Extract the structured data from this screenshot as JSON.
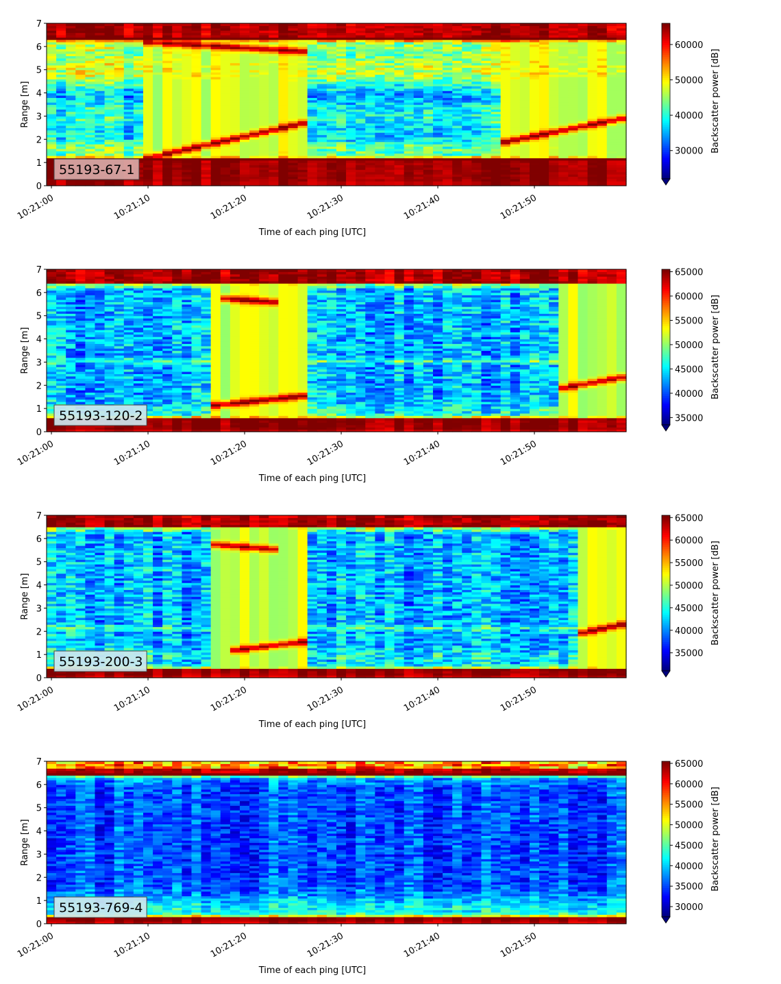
{
  "chart_data": [
    {
      "type": "heatmap",
      "panel_label": "55193-67-1",
      "xlabel": "Time of each ping [UTC]",
      "ylabel": "Range [m]",
      "xticks": [
        "10:21:00",
        "10:21:10",
        "10:21:20",
        "10:21:30",
        "10:21:40",
        "10:21:50"
      ],
      "xlim_seconds": [
        -0.5,
        59.5
      ],
      "ylim": [
        0,
        7
      ],
      "yticks": [
        "0",
        "1",
        "2",
        "3",
        "4",
        "5",
        "6",
        "7"
      ],
      "colorbar_label": "Backscatter power [dB]",
      "colorbar_ticks": [
        30000,
        40000,
        50000,
        60000
      ],
      "colorbar_range": [
        22000,
        66000
      ],
      "colormap": "jet",
      "features": {
        "bottom_band": [
          0.2,
          1.15
        ],
        "top_band": [
          6.35,
          7.0
        ],
        "mid_band": [
          4.5,
          5.5
        ],
        "mid_low": [
          1.3,
          1.9
        ],
        "target_tracks": [
          {
            "t": [
              10,
              26
            ],
            "r": [
              1.2,
              2.7
            ]
          },
          {
            "t": [
              10,
              26
            ],
            "r": [
              6.2,
              5.8
            ]
          },
          {
            "t": [
              47,
              59
            ],
            "r": [
              1.9,
              2.9
            ]
          }
        ]
      }
    },
    {
      "type": "heatmap",
      "panel_label": "55193-120-2",
      "xlabel": "Time of each ping [UTC]",
      "ylabel": "Range [m]",
      "xticks": [
        "10:21:00",
        "10:21:10",
        "10:21:20",
        "10:21:30",
        "10:21:40",
        "10:21:50"
      ],
      "xlim_seconds": [
        -0.5,
        59.5
      ],
      "ylim": [
        0,
        7
      ],
      "yticks": [
        "0",
        "1",
        "2",
        "3",
        "4",
        "5",
        "6",
        "7"
      ],
      "colorbar_label": "Backscatter power [dB]",
      "colorbar_ticks": [
        35000,
        40000,
        45000,
        50000,
        55000,
        60000,
        65000
      ],
      "colorbar_range": [
        33500,
        65500
      ],
      "colormap": "jet",
      "features": {
        "bottom_band": [
          0.1,
          0.6
        ],
        "top_band": [
          6.4,
          7.0
        ],
        "stripe": 3.05,
        "target_tracks": [
          {
            "t": [
              17,
              26
            ],
            "r": [
              1.15,
              1.55
            ]
          },
          {
            "t": [
              18,
              23
            ],
            "r": [
              5.75,
              5.6
            ]
          },
          {
            "t": [
              53,
              59
            ],
            "r": [
              1.9,
              2.35
            ]
          }
        ]
      }
    },
    {
      "type": "heatmap",
      "panel_label": "55193-200-3",
      "xlabel": "Time of each ping [UTC]",
      "ylabel": "Range [m]",
      "xticks": [
        "10:21:00",
        "10:21:10",
        "10:21:20",
        "10:21:30",
        "10:21:40",
        "10:21:50"
      ],
      "xlim_seconds": [
        -0.5,
        59.5
      ],
      "ylim": [
        0,
        7
      ],
      "yticks": [
        "0",
        "1",
        "2",
        "3",
        "4",
        "5",
        "6",
        "7"
      ],
      "colorbar_label": "Backscatter power [dB]",
      "colorbar_ticks": [
        35000,
        40000,
        45000,
        50000,
        55000,
        60000,
        65000
      ],
      "colorbar_range": [
        31000,
        65500
      ],
      "colormap": "jet",
      "features": {
        "bottom_band": [
          0.1,
          0.4
        ],
        "top_band": [
          6.5,
          7.0
        ],
        "stripe": 2.15,
        "target_tracks": [
          {
            "t": [
              19,
              26
            ],
            "r": [
              1.2,
              1.55
            ]
          },
          {
            "t": [
              17,
              23
            ],
            "r": [
              5.75,
              5.55
            ]
          },
          {
            "t": [
              55,
              59
            ],
            "r": [
              1.95,
              2.3
            ]
          }
        ]
      }
    },
    {
      "type": "heatmap",
      "panel_label": "55193-769-4",
      "xlabel": "Time of each ping [UTC]",
      "ylabel": "Range [m]",
      "xticks": [
        "10:21:00",
        "10:21:10",
        "10:21:20",
        "10:21:30",
        "10:21:40",
        "10:21:50"
      ],
      "xlim_seconds": [
        -0.5,
        59.5
      ],
      "ylim": [
        0,
        7
      ],
      "yticks": [
        "0",
        "1",
        "2",
        "3",
        "4",
        "5",
        "6",
        "7"
      ],
      "colorbar_label": "Backscatter power [dB]",
      "colorbar_ticks": [
        30000,
        35000,
        40000,
        45000,
        50000,
        55000,
        60000,
        65000
      ],
      "colorbar_range": [
        27500,
        65500
      ],
      "colormap": "jet",
      "features": {
        "bottom_band": [
          0.1,
          0.3
        ],
        "top_band": [
          6.45,
          6.7
        ],
        "stripe": null,
        "target_tracks": []
      }
    }
  ],
  "colors": {
    "label_box_1": "#d8aaa8",
    "label_box_other": "#cde6ee"
  }
}
